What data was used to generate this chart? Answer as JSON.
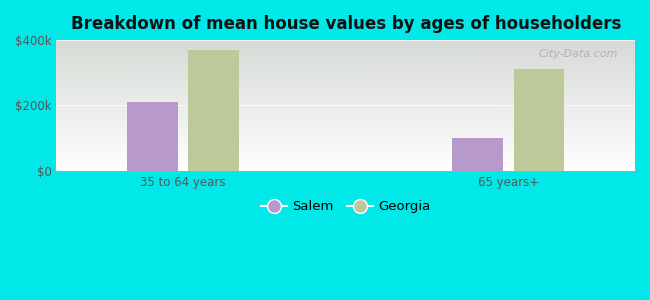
{
  "title": "Breakdown of mean house values by ages of householders",
  "categories": [
    "35 to 64 years",
    "65 years+"
  ],
  "salem_values": [
    210000,
    100000
  ],
  "georgia_values": [
    370000,
    310000
  ],
  "salem_color": "#b899cc",
  "georgia_color": "#bdc99a",
  "ylim": [
    0,
    400000
  ],
  "yticks": [
    0,
    200000,
    400000
  ],
  "ytick_labels": [
    "$0",
    "$200k",
    "$400k"
  ],
  "background_outer": "#00e8e8",
  "background_inner_top": "#d8eed8",
  "background_inner_bottom": "#eef8ee",
  "legend_salem": "Salem",
  "legend_georgia": "Georgia",
  "bar_width": 0.28,
  "group_centers": [
    1.0,
    2.8
  ],
  "xlim": [
    0.3,
    3.5
  ],
  "watermark": "City-Data.com"
}
